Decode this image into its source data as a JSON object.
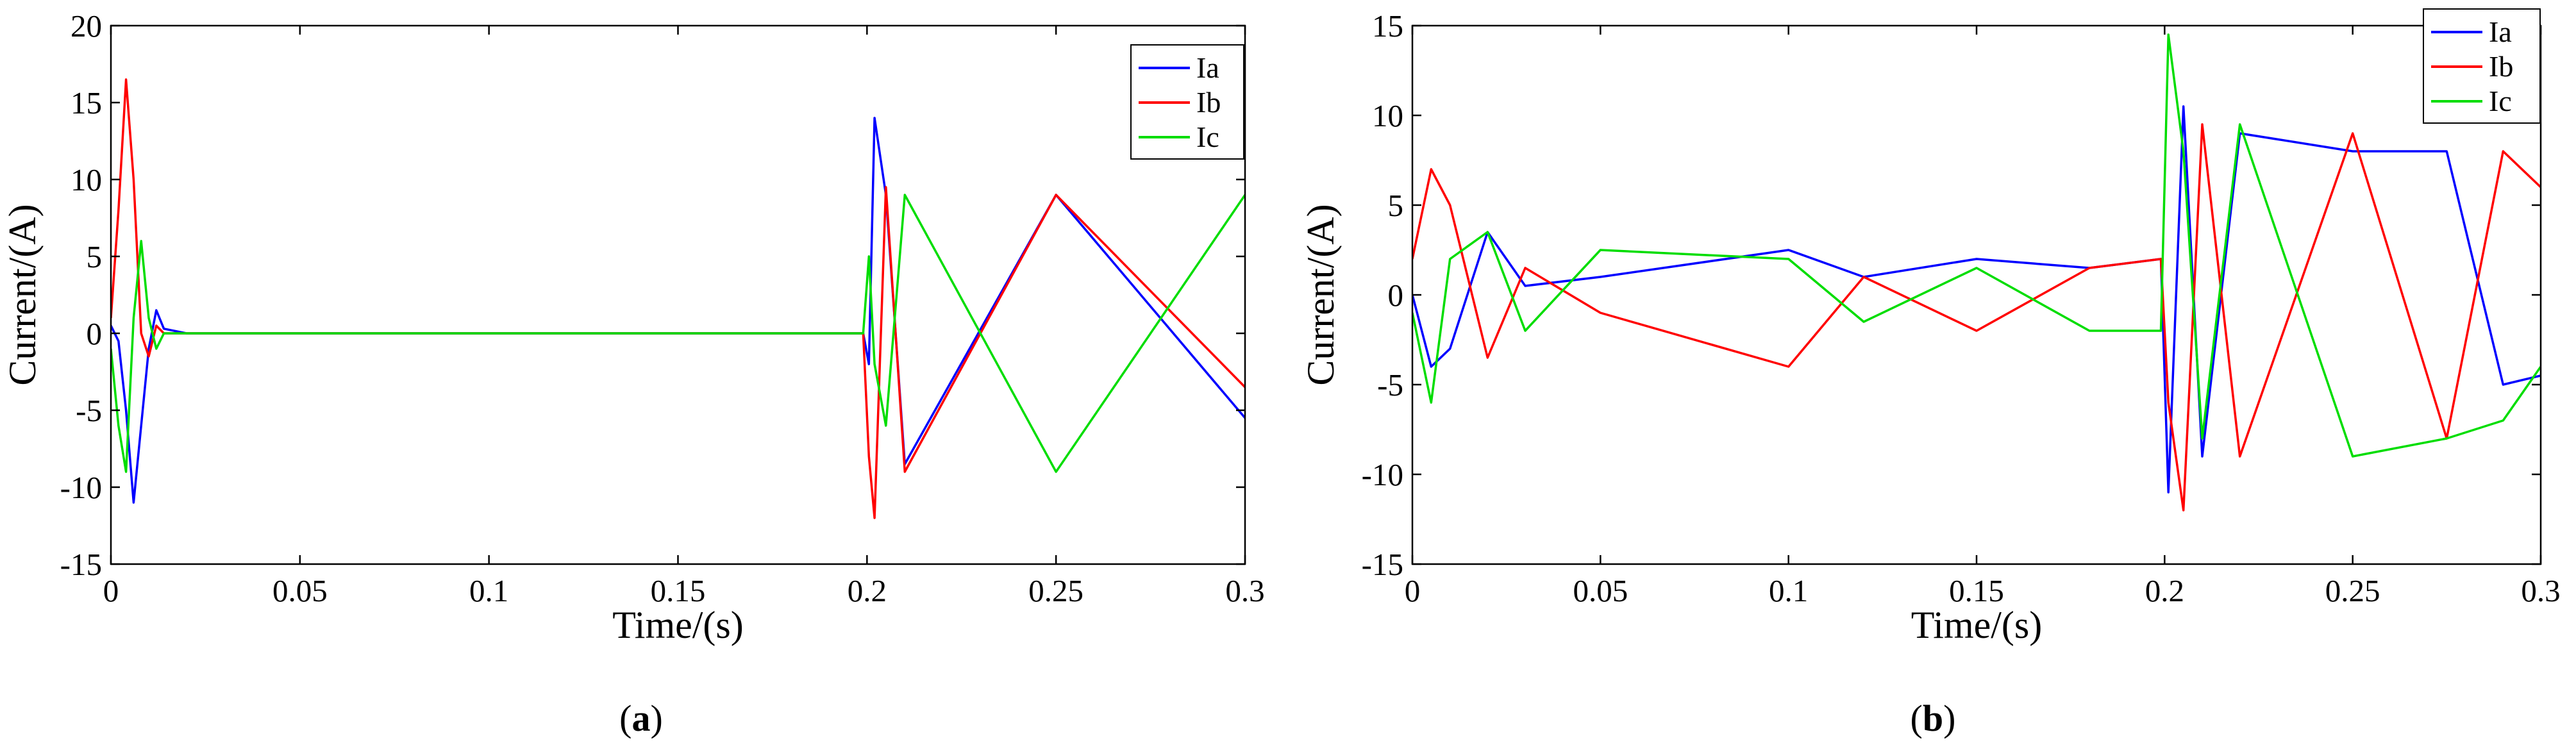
{
  "captions": [
    {
      "open": "(",
      "letter": "a",
      "close": ")"
    },
    {
      "open": "(",
      "letter": "b",
      "close": ")"
    }
  ],
  "chart_data": [
    {
      "type": "line",
      "title": "",
      "xlabel": "Time/(s)",
      "ylabel": "Current/(A)",
      "xlim": [
        0,
        0.3
      ],
      "ylim": [
        -15,
        20
      ],
      "xticks": [
        0,
        0.05,
        0.1,
        0.15,
        0.2,
        0.25,
        0.3
      ],
      "xtick_labels": [
        "0",
        "0.05",
        "0.1",
        "0.15",
        "0.2",
        "0.25",
        "0.3"
      ],
      "yticks": [
        -15,
        -10,
        -5,
        0,
        5,
        10,
        15,
        20
      ],
      "ytick_labels": [
        "-15",
        "-10",
        "-5",
        "0",
        "5",
        "10",
        "15",
        "20"
      ],
      "grid": false,
      "legend_position": "top-right",
      "series": [
        {
          "name": "Ia",
          "color": "#0000ff",
          "x": [
            0,
            0.002,
            0.004,
            0.006,
            0.008,
            0.01,
            0.012,
            0.014,
            0.02,
            0.05,
            0.1,
            0.15,
            0.199,
            0.2005,
            0.202,
            0.205,
            0.21,
            0.25,
            0.3
          ],
          "y": [
            0.5,
            -0.5,
            -5,
            -11,
            -6,
            -1,
            1.5,
            0.3,
            0,
            0,
            0,
            0,
            0,
            -2,
            14,
            9,
            -8.5,
            9,
            -5.5
          ]
        },
        {
          "name": "Ib",
          "color": "#ff0000",
          "x": [
            0,
            0.002,
            0.004,
            0.006,
            0.008,
            0.01,
            0.012,
            0.014,
            0.02,
            0.05,
            0.1,
            0.15,
            0.199,
            0.2005,
            0.202,
            0.205,
            0.21,
            0.25,
            0.3
          ],
          "y": [
            1,
            8,
            16.5,
            10,
            0,
            -1.5,
            0.5,
            0,
            0,
            0,
            0,
            0,
            0,
            -8,
            -12,
            9.5,
            -9,
            9,
            -3.5
          ]
        },
        {
          "name": "Ic",
          "color": "#00dd00",
          "x": [
            0,
            0.002,
            0.004,
            0.006,
            0.008,
            0.01,
            0.012,
            0.014,
            0.02,
            0.05,
            0.1,
            0.15,
            0.199,
            0.2005,
            0.202,
            0.205,
            0.21,
            0.25,
            0.3
          ],
          "y": [
            -1,
            -6,
            -9,
            1,
            6,
            1,
            -1,
            0,
            0,
            0,
            0,
            0,
            0,
            5,
            -2,
            -6,
            9,
            -9,
            9
          ]
        }
      ]
    },
    {
      "type": "line",
      "title": "",
      "xlabel": "Time/(s)",
      "ylabel": "Current/(A)",
      "xlim": [
        0,
        0.3
      ],
      "ylim": [
        -15,
        15
      ],
      "xticks": [
        0,
        0.05,
        0.1,
        0.15,
        0.2,
        0.25,
        0.3
      ],
      "xtick_labels": [
        "0",
        "0.05",
        "0.1",
        "0.15",
        "0.2",
        "0.25",
        "0.3"
      ],
      "yticks": [
        -15,
        -10,
        -5,
        0,
        5,
        10,
        15
      ],
      "ytick_labels": [
        "-15",
        "-10",
        "-5",
        "0",
        "5",
        "10",
        "15"
      ],
      "grid": false,
      "legend_position": "top-right",
      "series": [
        {
          "name": "Ia",
          "color": "#0000ff",
          "x": [
            0,
            0.005,
            0.01,
            0.02,
            0.03,
            0.05,
            0.1,
            0.12,
            0.15,
            0.18,
            0.199,
            0.201,
            0.205,
            0.21,
            0.22,
            0.25,
            0.275,
            0.29,
            0.3
          ],
          "y": [
            0,
            -4,
            -3,
            3.5,
            0.5,
            1,
            2.5,
            1,
            2,
            1.5,
            2,
            -11,
            10.5,
            -9,
            9,
            8,
            8,
            -5,
            -4.5
          ]
        },
        {
          "name": "Ib",
          "color": "#ff0000",
          "x": [
            0,
            0.005,
            0.01,
            0.02,
            0.03,
            0.05,
            0.1,
            0.12,
            0.15,
            0.18,
            0.199,
            0.201,
            0.205,
            0.21,
            0.22,
            0.25,
            0.275,
            0.29,
            0.3
          ],
          "y": [
            2,
            7,
            5,
            -3.5,
            1.5,
            -1,
            -4,
            1,
            -2,
            1.5,
            2,
            -6,
            -12,
            9.5,
            -9,
            9,
            -8,
            8,
            6
          ]
        },
        {
          "name": "Ic",
          "color": "#00dd00",
          "x": [
            0,
            0.005,
            0.01,
            0.02,
            0.03,
            0.05,
            0.1,
            0.12,
            0.15,
            0.18,
            0.199,
            0.201,
            0.205,
            0.21,
            0.22,
            0.25,
            0.275,
            0.29,
            0.3
          ],
          "y": [
            -1,
            -6,
            2,
            3.5,
            -2,
            2.5,
            2,
            -1.5,
            1.5,
            -2,
            -2,
            14.5,
            8,
            -8,
            9.5,
            -9,
            -8,
            -7,
            -4
          ]
        }
      ]
    }
  ]
}
